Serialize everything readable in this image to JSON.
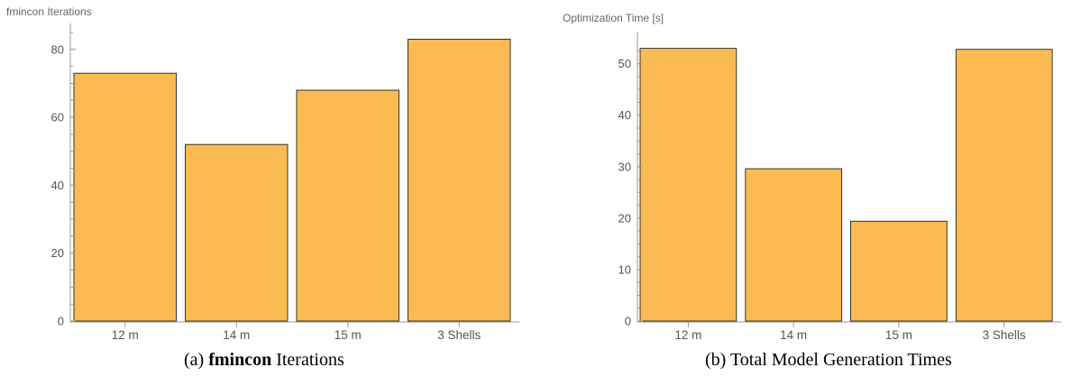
{
  "bar_color": "#fbbb52",
  "chart_data": [
    {
      "type": "bar",
      "title": "",
      "ylabel": "fmincon Iterations",
      "categories": [
        "12 m",
        "14 m",
        "15 m",
        "3 Shells"
      ],
      "values": [
        73,
        52,
        68,
        83
      ],
      "ylim": [
        0,
        85
      ],
      "yticks": [
        0,
        20,
        40,
        60,
        80
      ],
      "grid": false
    },
    {
      "type": "bar",
      "title": "",
      "ylabel": "Optimization Time [s]",
      "categories": [
        "12 m",
        "14 m",
        "15 m",
        "3 Shells"
      ],
      "values": [
        53,
        29.6,
        19.4,
        52.8
      ],
      "ylim": [
        0,
        54.5
      ],
      "yticks": [
        0,
        10,
        20,
        30,
        40,
        50
      ],
      "grid": false
    }
  ],
  "captions": [
    {
      "prefix": "(a) ",
      "bold": "fmincon",
      "suffix": " Iterations"
    },
    {
      "prefix": "(b) Total Model Generation Times",
      "bold": "",
      "suffix": ""
    }
  ]
}
